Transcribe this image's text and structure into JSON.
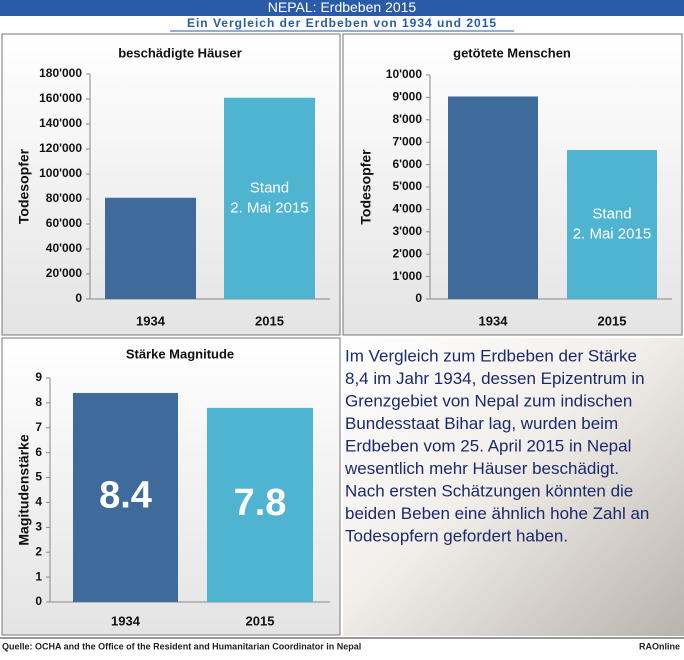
{
  "header": {
    "title": "NEPAL: Erdbeben 2015",
    "subtitle": "Ein Vergleich der Erdbeben von 1934 und 2015"
  },
  "chart_data": [
    {
      "type": "bar",
      "title": "beschädigte Häuser",
      "y_label": "Todesopfer",
      "categories": [
        "1934",
        "2015"
      ],
      "values": [
        81000,
        161000
      ],
      "colors": [
        "#3f6b9b",
        "#4fb4d0"
      ],
      "annotations": [
        "Stand",
        "2. Mai 2015"
      ],
      "ylim": [
        0,
        180000
      ],
      "yticks": [
        0,
        {
          "value": 20000,
          "label": "20'000"
        },
        {
          "value": 40000,
          "label": "40'000"
        },
        {
          "value": 60000,
          "label": "60'000"
        },
        {
          "value": 80000,
          "label": "80'000"
        },
        {
          "value": 100000,
          "label": "100'000"
        },
        {
          "value": 120000,
          "label": "120'000"
        },
        {
          "value": 140000,
          "label": "140'000"
        },
        {
          "value": 160000,
          "label": "160'000"
        },
        {
          "value": 180000,
          "label": "180'000"
        }
      ],
      "grid": false
    },
    {
      "type": "bar",
      "title": "getötete Menschen",
      "y_label": "Todesopfer",
      "categories": [
        "1934",
        "2015"
      ],
      "values": [
        9040,
        6650
      ],
      "colors": [
        "#3f6b9b",
        "#4fb4d0"
      ],
      "annotations": [
        "Stand",
        "2. Mai 2015"
      ],
      "ylim": [
        0,
        10000
      ],
      "yticks": [
        0,
        {
          "value": 1000,
          "label": "1'000"
        },
        {
          "value": 2000,
          "label": "2'000"
        },
        {
          "value": 3000,
          "label": "3'000"
        },
        {
          "value": 4000,
          "label": "4'000"
        },
        {
          "value": 5000,
          "label": "5'000"
        },
        {
          "value": 6000,
          "label": "6'000"
        },
        {
          "value": 7000,
          "label": "7'000"
        },
        {
          "value": 8000,
          "label": "8'000"
        },
        {
          "value": 9000,
          "label": "9'000"
        },
        {
          "value": 10000,
          "label": "10'000"
        }
      ],
      "grid": false
    },
    {
      "type": "bar",
      "title": "Stärke Magnitude",
      "y_label": "Magitudenstärke",
      "categories": [
        "1934",
        "2015"
      ],
      "values": [
        8.4,
        7.8
      ],
      "colors": [
        "#3f6b9b",
        "#4fb4d0"
      ],
      "ylim": [
        0,
        9
      ],
      "yticks": [
        0,
        1,
        2,
        3,
        4,
        5,
        6,
        7,
        8,
        9
      ],
      "grid": false,
      "data_labels": true
    }
  ],
  "text": {
    "lines": [
      "Im Vergleich zum Erdbeben der Stärke",
      "8,4 im Jahr 1934, dessen Epizentrum in",
      "Grenzgebiet von Nepal zum indischen",
      "Bundesstaat Bihar lag, wurden beim",
      "Erdbeben vom 25. April 2015 in Nepal",
      "wesentlich mehr Häuser beschädigt.",
      "Nach ersten Schätzungen könnten die",
      "beiden Beben eine ähnlich hohe Zahl an",
      "Todesopfern gefordert haben."
    ]
  },
  "footer": {
    "source": "Quelle: OCHA and the Office of the Resident and Humanitarian Coordinator in Nepal",
    "credit": "RAOnline"
  }
}
